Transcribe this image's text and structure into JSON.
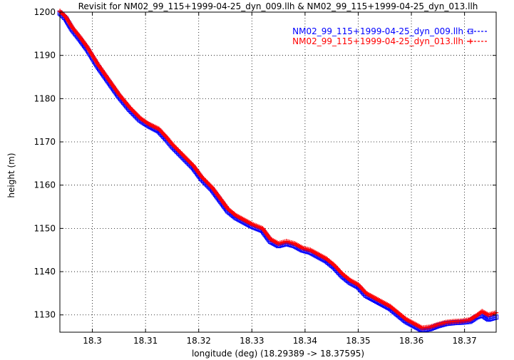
{
  "chart_data": {
    "type": "line",
    "title": "Revisit for NM02_99_115+1999-04-25_dyn_009.llh & NM02_99_115+1999-04-25_dyn_013.llh",
    "xlabel": "longitude (deg) (18.29389 -> 18.37595)",
    "ylabel": "height (m)",
    "xlim": [
      18.29389,
      18.37595
    ],
    "ylim": [
      1126,
      1200
    ],
    "xticks": [
      18.3,
      18.31,
      18.32,
      18.33,
      18.34,
      18.35,
      18.36,
      18.37
    ],
    "xtick_labels": [
      "18.3",
      "18.31",
      "18.32",
      "18.33",
      "18.34",
      "18.35",
      "18.36",
      "18.37"
    ],
    "yticks": [
      1130,
      1140,
      1150,
      1160,
      1170,
      1180,
      1190,
      1200
    ],
    "ytick_labels": [
      "1130",
      "1140",
      "1150",
      "1160",
      "1170",
      "1180",
      "1190",
      "1200"
    ],
    "grid": true,
    "grid_style": "dotted",
    "legend_position": "top-right",
    "series": [
      {
        "name": "NM02_99_115+1999-04-25_dyn_009.llh",
        "color": "#0000ff",
        "marker": "square",
        "line": "dashed",
        "x": [
          18.2939,
          18.295,
          18.2962,
          18.2975,
          18.299,
          18.3,
          18.301,
          18.303,
          18.305,
          18.307,
          18.309,
          18.3105,
          18.3125,
          18.314,
          18.315,
          18.317,
          18.319,
          18.3205,
          18.3225,
          18.324,
          18.3255,
          18.327,
          18.3285,
          18.33,
          18.332,
          18.3335,
          18.335,
          18.3365,
          18.338,
          18.3395,
          18.341,
          18.3425,
          18.344,
          18.3455,
          18.347,
          18.3485,
          18.35,
          18.3515,
          18.353,
          18.3545,
          18.356,
          18.3575,
          18.359,
          18.3605,
          18.362,
          18.3635,
          18.365,
          18.3665,
          18.368,
          18.3695,
          18.371,
          18.3722,
          18.3733,
          18.3745,
          18.3759
        ],
        "y": [
          1199.8,
          1198.5,
          1196.0,
          1194.0,
          1191.5,
          1189.5,
          1187.5,
          1184.0,
          1180.5,
          1177.5,
          1175.0,
          1173.8,
          1172.5,
          1170.5,
          1169.0,
          1166.5,
          1164.0,
          1161.5,
          1159.0,
          1156.5,
          1154.0,
          1152.5,
          1151.5,
          1150.5,
          1149.5,
          1147.0,
          1146.0,
          1146.5,
          1146.0,
          1145.0,
          1144.5,
          1143.5,
          1142.5,
          1141.0,
          1139.0,
          1137.5,
          1136.5,
          1134.5,
          1133.5,
          1132.5,
          1131.5,
          1130.0,
          1128.5,
          1127.5,
          1126.5,
          1126.8,
          1127.5,
          1128.0,
          1128.2,
          1128.3,
          1128.5,
          1129.5,
          1130.0,
          1129.0,
          1129.5
        ]
      },
      {
        "name": "NM02_99_115+1999-04-25_dyn_013.llh",
        "color": "#ff0000",
        "marker": "plus",
        "line": "dashed",
        "x": [
          18.2939,
          18.295,
          18.2962,
          18.2975,
          18.299,
          18.3,
          18.301,
          18.303,
          18.305,
          18.307,
          18.309,
          18.3105,
          18.3125,
          18.314,
          18.315,
          18.317,
          18.319,
          18.3205,
          18.3225,
          18.324,
          18.3255,
          18.327,
          18.3285,
          18.33,
          18.332,
          18.3335,
          18.335,
          18.3365,
          18.338,
          18.3395,
          18.341,
          18.3425,
          18.344,
          18.3455,
          18.347,
          18.3485,
          18.35,
          18.3515,
          18.353,
          18.3545,
          18.356,
          18.3575,
          18.359,
          18.3605,
          18.362,
          18.3635,
          18.365,
          18.3665,
          18.368,
          18.3695,
          18.371,
          18.3722,
          18.3733,
          18.3745,
          18.3759
        ],
        "y": [
          1200.2,
          1198.9,
          1196.5,
          1194.5,
          1192.0,
          1190.0,
          1188.0,
          1184.5,
          1181.0,
          1178.0,
          1175.5,
          1174.2,
          1173.0,
          1171.0,
          1169.5,
          1167.0,
          1164.5,
          1162.0,
          1159.5,
          1157.0,
          1154.5,
          1153.0,
          1152.0,
          1151.0,
          1150.0,
          1147.5,
          1146.5,
          1147.0,
          1146.5,
          1145.5,
          1145.0,
          1144.0,
          1143.0,
          1141.5,
          1139.5,
          1138.0,
          1137.0,
          1135.0,
          1134.0,
          1133.0,
          1132.0,
          1130.5,
          1129.0,
          1128.0,
          1127.0,
          1127.2,
          1127.8,
          1128.3,
          1128.5,
          1128.6,
          1128.9,
          1129.8,
          1130.8,
          1130.0,
          1130.5
        ]
      }
    ]
  }
}
